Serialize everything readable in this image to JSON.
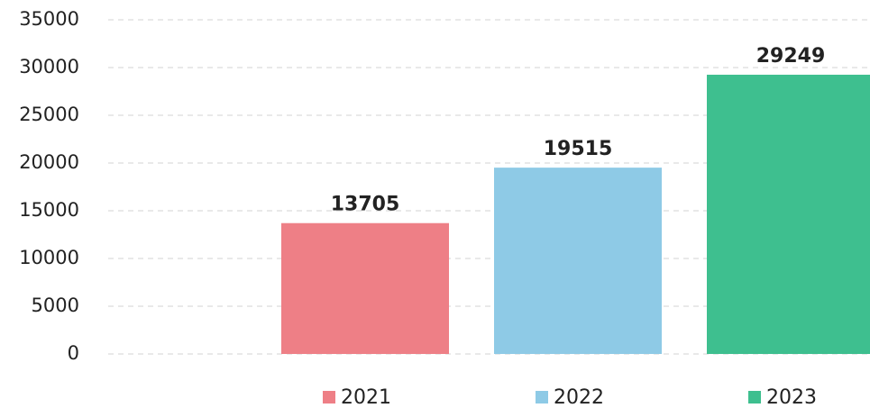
{
  "chart_data": {
    "type": "bar",
    "series": [
      {
        "name": "2021",
        "color": "#ee7f86",
        "values": [
          13705
        ]
      },
      {
        "name": "2022",
        "color": "#8ecae6",
        "values": [
          19515
        ]
      },
      {
        "name": "2023",
        "color": "#3ebf8f",
        "values": [
          29249
        ]
      }
    ],
    "ylim": [
      0,
      35000
    ],
    "yticks": [
      0,
      5000,
      10000,
      15000,
      20000,
      25000,
      30000,
      35000
    ],
    "grid": true,
    "legend": "bottom",
    "data_labels": true
  }
}
